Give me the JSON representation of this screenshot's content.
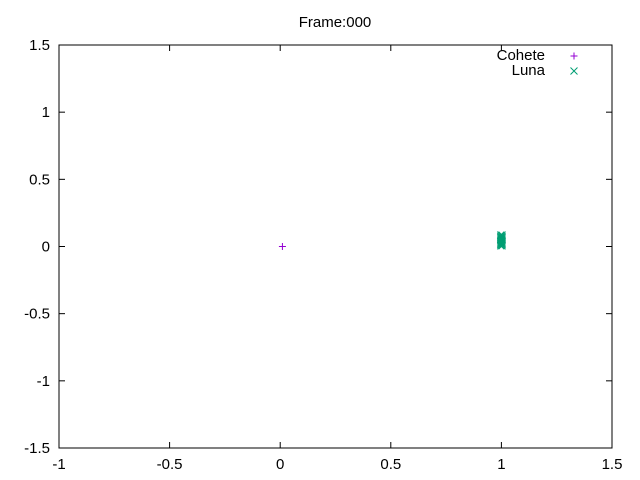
{
  "chart_data": {
    "type": "scatter",
    "title": "Frame:000",
    "xlabel": "",
    "ylabel": "",
    "xlim": [
      -1,
      1.5
    ],
    "ylim": [
      -1.5,
      1.5
    ],
    "xticks": [
      -1,
      -0.5,
      0,
      0.5,
      1,
      1.5
    ],
    "xtick_labels": [
      "-1",
      "-0.5",
      "0",
      "0.5",
      "1",
      "1.5"
    ],
    "yticks": [
      -1.5,
      -1,
      -0.5,
      0,
      0.5,
      1,
      1.5
    ],
    "ytick_labels": [
      "-1.5",
      "-1",
      "-0.5",
      "0",
      "0.5",
      "1",
      "1.5"
    ],
    "grid": false,
    "legend_position": "top-right",
    "series": [
      {
        "name": "Cohete",
        "marker": "plus",
        "color": "#9400d3",
        "points": [
          [
            0.01,
            0.0
          ]
        ]
      },
      {
        "name": "Luna",
        "marker": "cross",
        "color": "#009e73",
        "points": [
          [
            0.997,
            0.005
          ],
          [
            1.003,
            0.005
          ],
          [
            0.997,
            0.015
          ],
          [
            1.003,
            0.015
          ],
          [
            0.997,
            0.025
          ],
          [
            1.003,
            0.025
          ],
          [
            0.997,
            0.035
          ],
          [
            1.003,
            0.035
          ],
          [
            0.997,
            0.045
          ],
          [
            1.003,
            0.045
          ],
          [
            0.997,
            0.055
          ],
          [
            1.003,
            0.055
          ],
          [
            0.997,
            0.065
          ],
          [
            1.003,
            0.065
          ],
          [
            0.997,
            0.075
          ],
          [
            1.003,
            0.075
          ],
          [
            0.997,
            0.085
          ],
          [
            1.003,
            0.085
          ]
        ]
      }
    ]
  }
}
